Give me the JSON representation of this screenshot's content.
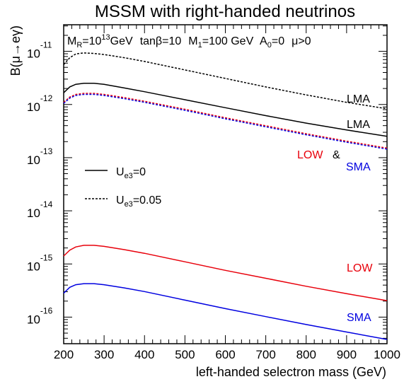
{
  "chart_data": {
    "type": "line",
    "title": "MSSM with right-handed neutrinos",
    "xlabel": "left-handed selectron mass (GeV)",
    "ylabel": "B(μ→eγ)",
    "xlim": [
      200,
      1000
    ],
    "ylim_log10": [
      -16.5,
      -10.5
    ],
    "y_scale": "log",
    "grid": false,
    "x_ticks": [
      200,
      300,
      400,
      500,
      600,
      700,
      800,
      900,
      1000
    ],
    "y_ticks": [
      {
        "base": "10",
        "exp": "-11",
        "value": -11
      },
      {
        "base": "10",
        "exp": "-12",
        "value": -12
      },
      {
        "base": "10",
        "exp": "-13",
        "value": -13
      },
      {
        "base": "10",
        "exp": "-14",
        "value": -14
      },
      {
        "base": "10",
        "exp": "-15",
        "value": -15
      },
      {
        "base": "10",
        "exp": "-16",
        "value": -16
      }
    ],
    "parameters": {
      "mr": {
        "main": "M",
        "sub": "R",
        "mid": "=10",
        "sup": "13",
        "tail": "GeV"
      },
      "tanb": "tanβ=10",
      "m1": {
        "main": "M",
        "sub": "1",
        "tail": "=100 GeV"
      },
      "a0": {
        "main": "A",
        "sub": "0",
        "tail": "=0"
      },
      "mu": "μ>0"
    },
    "legend": {
      "placement": "middle-left",
      "entries": [
        {
          "style": "solid",
          "main": "U",
          "sub": "e3",
          "tail": "=0"
        },
        {
          "style": "dashed",
          "main": "U",
          "sub": "e3",
          "tail": "=0.05"
        }
      ]
    },
    "annotations": {
      "lma_dashed": "LMA",
      "lma_solid": "LMA",
      "low_upper": "LOW",
      "amp": "&",
      "sma_upper": "SMA",
      "low_lower": "LOW",
      "sma_lower": "SMA"
    },
    "colors": {
      "black": "#000000",
      "red": "#e8000b",
      "blue": "#0000e0"
    },
    "x": [
      200,
      215,
      230,
      250,
      275,
      300,
      350,
      400,
      500,
      600,
      700,
      800,
      900,
      1000
    ],
    "series": [
      {
        "label_key": "lma_dashed",
        "color": "black",
        "dash": true,
        "y_log10": [
          -11.25,
          -11.12,
          -11.05,
          -11.03,
          -11.04,
          -11.06,
          -11.12,
          -11.19,
          -11.35,
          -11.51,
          -11.67,
          -11.82,
          -11.96,
          -12.08
        ]
      },
      {
        "label_key": "lma_solid",
        "color": "black",
        "dash": false,
        "y_log10": [
          -11.78,
          -11.67,
          -11.62,
          -11.6,
          -11.6,
          -11.62,
          -11.69,
          -11.76,
          -11.91,
          -12.06,
          -12.21,
          -12.35,
          -12.48,
          -12.6
        ]
      },
      {
        "label_key": "low_upper",
        "color": "red",
        "dash": true,
        "y_log10": [
          -11.96,
          -11.86,
          -11.81,
          -11.79,
          -11.79,
          -11.81,
          -11.87,
          -11.94,
          -12.09,
          -12.25,
          -12.4,
          -12.55,
          -12.69,
          -12.82
        ]
      },
      {
        "label_key": "sma_upper",
        "color": "blue",
        "dash": true,
        "y_log10": [
          -11.98,
          -11.88,
          -11.83,
          -11.81,
          -11.81,
          -11.83,
          -11.89,
          -11.96,
          -12.11,
          -12.27,
          -12.42,
          -12.57,
          -12.71,
          -12.84
        ]
      },
      {
        "label_key": "low_lower",
        "color": "red",
        "dash": false,
        "y_log10": [
          -14.85,
          -14.74,
          -14.68,
          -14.65,
          -14.65,
          -14.67,
          -14.73,
          -14.8,
          -14.96,
          -15.12,
          -15.27,
          -15.42,
          -15.56,
          -15.69
        ]
      },
      {
        "label_key": "sma_lower",
        "color": "blue",
        "dash": false,
        "y_log10": [
          -15.55,
          -15.44,
          -15.39,
          -15.37,
          -15.37,
          -15.39,
          -15.45,
          -15.52,
          -15.68,
          -15.84,
          -15.99,
          -16.14,
          -16.28,
          -16.42
        ]
      }
    ]
  }
}
